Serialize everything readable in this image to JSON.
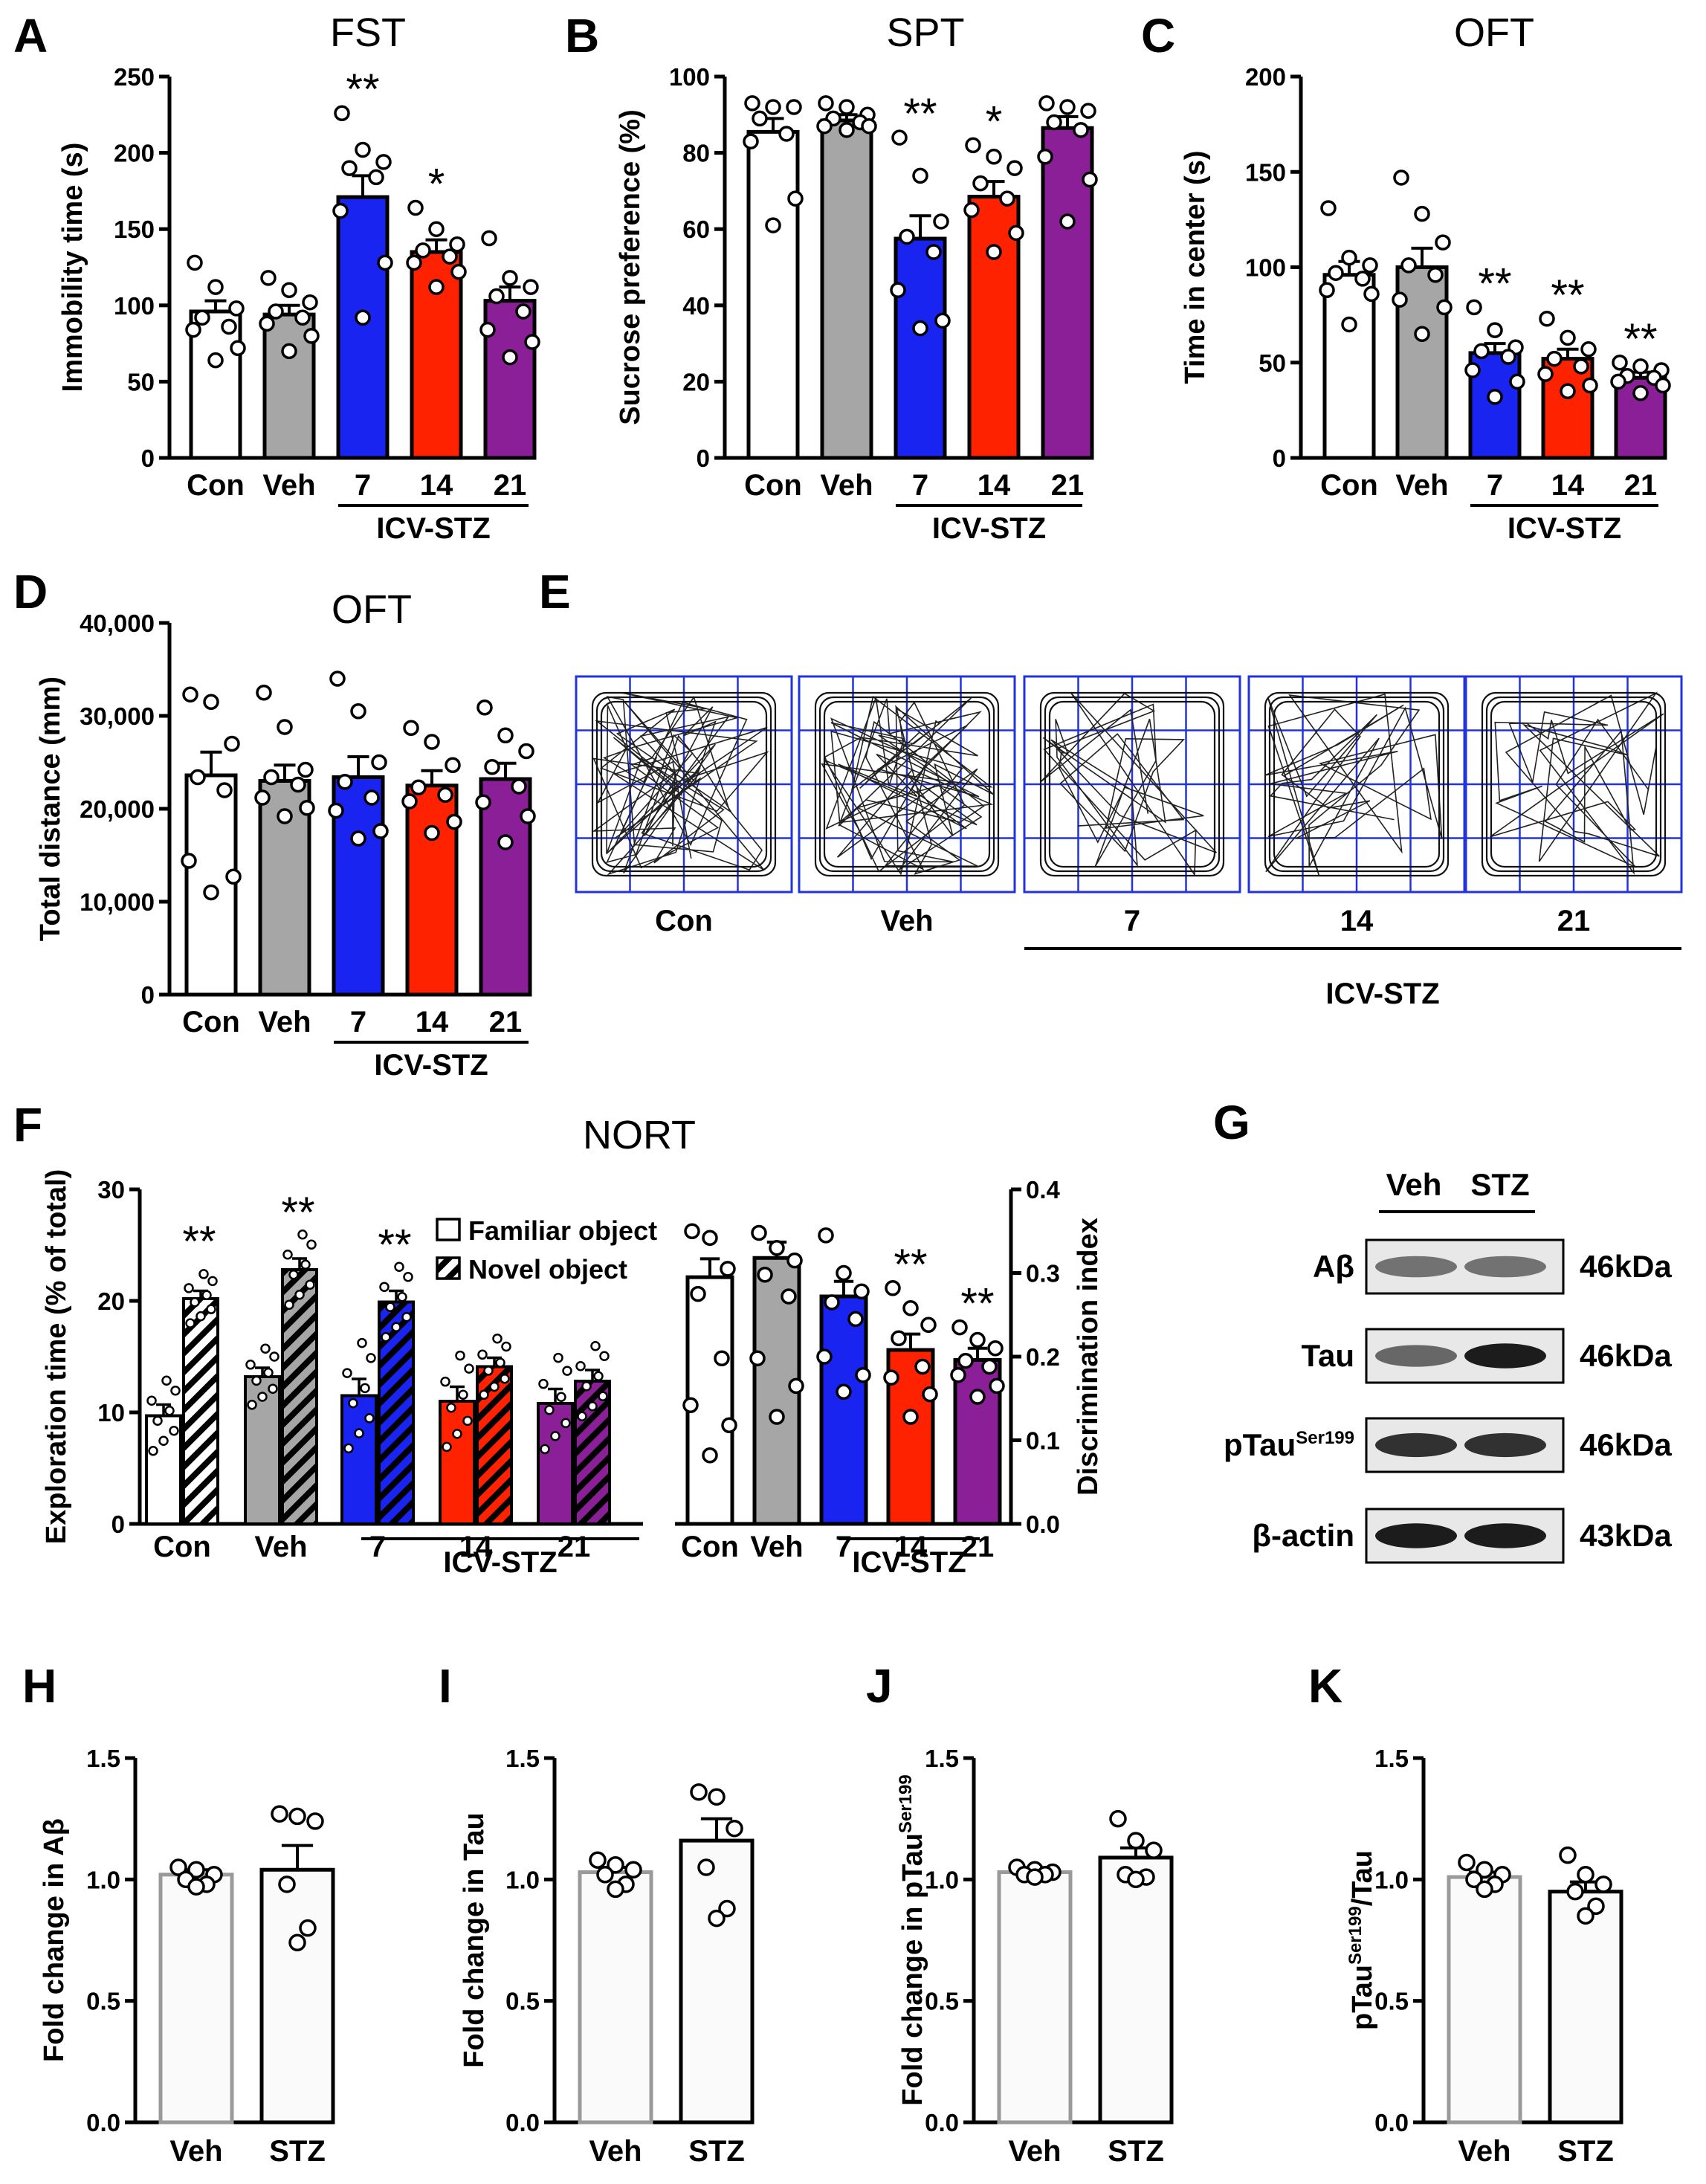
{
  "colors": {
    "con": "#ffffff",
    "veh": "#a6a6a6",
    "d7": "#1a24f0",
    "d14": "#ff2200",
    "d21": "#8a1f97",
    "grid": "#2233dd"
  },
  "group_label": "ICV-STZ",
  "chart_data": [
    {
      "id": "A",
      "type": "bar",
      "panel_label": "A",
      "title": "FST",
      "ylabel": "Immobility time (s)",
      "ylim": [
        0,
        250
      ],
      "yticks": [
        "0",
        "50",
        "100",
        "150",
        "200",
        "250"
      ],
      "categories": [
        "Con",
        "Veh",
        "7",
        "14",
        "21"
      ],
      "values": [
        96,
        94,
        171,
        135,
        103
      ],
      "sem": [
        7,
        6,
        14,
        8,
        9
      ],
      "stars": [
        "",
        "",
        "**",
        "*",
        ""
      ],
      "points": [
        [
          128,
          112,
          98,
          92,
          86,
          84,
          72,
          64
        ],
        [
          118,
          110,
          102,
          96,
          92,
          88,
          80,
          70
        ],
        [
          226,
          202,
          194,
          190,
          184,
          162,
          128,
          92
        ],
        [
          164,
          150,
          140,
          136,
          132,
          128,
          122,
          112
        ],
        [
          144,
          118,
          112,
          106,
          96,
          84,
          76,
          66
        ]
      ]
    },
    {
      "id": "B",
      "type": "bar",
      "panel_label": "B",
      "title": "SPT",
      "ylabel": "Sucrose preference (%)",
      "ylim": [
        0,
        100
      ],
      "yticks": [
        "0",
        "20",
        "40",
        "60",
        "80",
        "100"
      ],
      "categories": [
        "Con",
        "Veh",
        "7",
        "14",
        "21"
      ],
      "values": [
        85.5,
        88.5,
        57.5,
        68.5,
        86.5
      ],
      "sem": [
        3.5,
        1.5,
        6,
        4,
        3
      ],
      "stars": [
        "",
        "",
        "**",
        "*",
        ""
      ],
      "points": [
        [
          93,
          92,
          92,
          89,
          85,
          83,
          68,
          61
        ],
        [
          93,
          92,
          90,
          89,
          88,
          87,
          87,
          86
        ],
        [
          84,
          74,
          62,
          58,
          54,
          44,
          36,
          34
        ],
        [
          82,
          79,
          76,
          72,
          68,
          65,
          59,
          54
        ],
        [
          93,
          92,
          91,
          88,
          86,
          79,
          73,
          62
        ]
      ]
    },
    {
      "id": "C",
      "type": "bar",
      "panel_label": "C",
      "title": "OFT",
      "ylabel": "Time in center (s)",
      "ylim": [
        0,
        200
      ],
      "yticks": [
        "0",
        "50",
        "100",
        "150",
        "200"
      ],
      "categories": [
        "Con",
        "Veh",
        "7",
        "14",
        "21"
      ],
      "values": [
        96,
        100,
        55,
        52,
        42
      ],
      "sem": [
        7,
        10,
        5,
        5,
        3
      ],
      "stars": [
        "",
        "",
        "**",
        "**",
        "**"
      ],
      "points": [
        [
          131,
          105,
          101,
          97,
          94,
          88,
          86,
          70
        ],
        [
          147,
          128,
          113,
          101,
          96,
          83,
          79,
          65
        ],
        [
          79,
          67,
          58,
          56,
          53,
          46,
          40,
          32
        ],
        [
          73,
          63,
          57,
          52,
          48,
          44,
          38,
          35
        ],
        [
          50,
          48,
          46,
          43,
          42,
          40,
          38,
          34
        ]
      ]
    },
    {
      "id": "D",
      "type": "bar",
      "panel_label": "D",
      "title": "OFT",
      "ylabel": "Total distance (mm)",
      "ylim": [
        0,
        40000
      ],
      "yticks": [
        "0",
        "10,000",
        "20,000",
        "30,000",
        "40,000"
      ],
      "categories": [
        "Con",
        "Veh",
        "7",
        "14",
        "21"
      ],
      "values": [
        23600,
        23000,
        23400,
        22500,
        23200
      ],
      "sem": [
        2500,
        1700,
        2200,
        1600,
        1700
      ],
      "stars": [
        "",
        "",
        "",
        "",
        ""
      ],
      "points": [
        [
          32300,
          31500,
          27000,
          23400,
          22000,
          14400,
          12700,
          11000
        ],
        [
          32500,
          28800,
          24200,
          23400,
          22600,
          21200,
          20100,
          19200
        ],
        [
          34000,
          30500,
          25000,
          22900,
          21200,
          19800,
          17600,
          16800
        ],
        [
          28700,
          27200,
          24700,
          22300,
          21500,
          20800,
          18600,
          17400
        ],
        [
          30900,
          27900,
          26200,
          24500,
          22400,
          20700,
          19200,
          16400
        ]
      ]
    },
    {
      "id": "F1",
      "type": "bar",
      "panel_label": "F",
      "title": "NORT",
      "ylabel": "Exploration time (% of total)",
      "ylim": [
        0,
        30
      ],
      "yticks": [
        "0",
        "10",
        "20",
        "30"
      ],
      "categories": [
        "Con",
        "Veh",
        "7",
        "14",
        "21"
      ],
      "series": [
        {
          "name": "Familiar object",
          "values": [
            9.7,
            13.2,
            11.5,
            11.0,
            10.8
          ],
          "sem": [
            1.0,
            0.8,
            1.5,
            1.3,
            1.3
          ]
        },
        {
          "name": "Novel object",
          "values": [
            20.2,
            22.8,
            19.9,
            14.1,
            12.8
          ],
          "sem": [
            0.7,
            1.0,
            1.0,
            0.8,
            1.0
          ]
        }
      ],
      "stars": [
        "**",
        "**",
        "**",
        "",
        ""
      ]
    },
    {
      "id": "F2",
      "type": "bar",
      "title": "",
      "ylabel": "Discrimination index",
      "ylim": [
        0,
        0.4
      ],
      "yticks": [
        "0.0",
        "0.1",
        "0.2",
        "0.3",
        "0.4"
      ],
      "categories": [
        "Con",
        "Veh",
        "7",
        "14",
        "21"
      ],
      "values": [
        0.295,
        0.318,
        0.272,
        0.208,
        0.196
      ],
      "sem": [
        0.022,
        0.019,
        0.018,
        0.019,
        0.014
      ],
      "stars": [
        "",
        "",
        "",
        "**",
        "**"
      ],
      "points": [
        [
          0.35,
          0.342,
          0.305,
          0.275,
          0.198,
          0.142,
          0.118,
          0.082
        ],
        [
          0.348,
          0.33,
          0.315,
          0.298,
          0.272,
          0.198,
          0.165,
          0.128
        ],
        [
          0.345,
          0.3,
          0.278,
          0.265,
          0.245,
          0.2,
          0.178,
          0.158
        ],
        [
          0.282,
          0.258,
          0.238,
          0.222,
          0.188,
          0.175,
          0.155,
          0.128
        ],
        [
          0.235,
          0.22,
          0.21,
          0.195,
          0.188,
          0.178,
          0.165,
          0.152
        ]
      ]
    },
    {
      "id": "H",
      "type": "bar",
      "panel_label": "H",
      "ylabel": "Fold change in Aβ",
      "ylim": [
        0,
        1.5
      ],
      "yticks": [
        "0.0",
        "0.5",
        "1.0",
        "1.5"
      ],
      "categories": [
        "Veh",
        "STZ"
      ],
      "values": [
        1.02,
        1.04
      ],
      "sem": [
        0.02,
        0.1
      ],
      "points": [
        [
          1.05,
          1.04,
          1.02,
          1.0,
          0.98,
          0.97
        ],
        [
          1.27,
          1.26,
          1.24,
          0.98,
          0.8,
          0.74
        ]
      ]
    },
    {
      "id": "I",
      "type": "bar",
      "panel_label": "I",
      "ylabel": "Fold change in Tau",
      "ylim": [
        0,
        1.5
      ],
      "yticks": [
        "0.0",
        "0.5",
        "1.0",
        "1.5"
      ],
      "categories": [
        "Veh",
        "STZ"
      ],
      "values": [
        1.03,
        1.16
      ],
      "sem": [
        0.02,
        0.09
      ],
      "points": [
        [
          1.08,
          1.06,
          1.04,
          1.02,
          0.98,
          0.96
        ],
        [
          1.36,
          1.34,
          1.21,
          1.05,
          0.88,
          0.84
        ]
      ]
    },
    {
      "id": "J",
      "type": "bar",
      "panel_label": "J",
      "ylabel": "Fold change in pTau",
      "ylabel_sup": "Ser199",
      "ylim": [
        0,
        1.5
      ],
      "yticks": [
        "0.0",
        "0.5",
        "1.0",
        "1.5"
      ],
      "categories": [
        "Veh",
        "STZ"
      ],
      "values": [
        1.03,
        1.09
      ],
      "sem": [
        0.01,
        0.04
      ],
      "points": [
        [
          1.05,
          1.04,
          1.03,
          1.02,
          1.02,
          1.01
        ],
        [
          1.25,
          1.16,
          1.12,
          1.02,
          1.01,
          1.0
        ]
      ]
    },
    {
      "id": "K",
      "type": "bar",
      "panel_label": "K",
      "ylabel": "pTau",
      "ylabel_sup": "Ser199",
      "ylabel_after": "/Tau",
      "ylim": [
        0,
        1.5
      ],
      "yticks": [
        "0.0",
        "0.5",
        "1.0",
        "1.5"
      ],
      "categories": [
        "Veh",
        "STZ"
      ],
      "values": [
        1.01,
        0.95
      ],
      "sem": [
        0.02,
        0.04
      ],
      "points": [
        [
          1.07,
          1.04,
          1.02,
          1.0,
          0.98,
          0.96
        ],
        [
          1.1,
          1.02,
          0.98,
          0.95,
          0.89,
          0.85
        ]
      ]
    }
  ],
  "panelE": {
    "label": "E",
    "arenas": [
      "Con",
      "Veh",
      "7",
      "14",
      "21"
    ]
  },
  "panelG": {
    "label": "G",
    "columns": [
      "Veh",
      "STZ"
    ],
    "rows": [
      {
        "name": "Aβ",
        "sup": "",
        "size": "46kDa"
      },
      {
        "name": "Tau",
        "sup": "",
        "size": "46kDa"
      },
      {
        "name": "pTau",
        "sup": "Ser199",
        "size": "46kDa"
      },
      {
        "name": "β-actin",
        "sup": "",
        "size": "43kDa"
      }
    ]
  }
}
